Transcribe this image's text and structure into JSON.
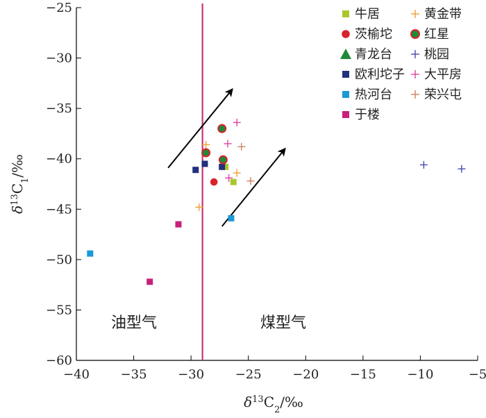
{
  "chart_data": {
    "type": "scatter",
    "xlabel": "δ13C2/‰",
    "ylabel": "δ13C1/‰",
    "xlim": [
      -40,
      -5
    ],
    "ylim": [
      -60,
      -25
    ],
    "x_ticks": [
      -40,
      -35,
      -30,
      -25,
      -20,
      -15,
      -10,
      -5
    ],
    "y_ticks": [
      -25,
      -30,
      -35,
      -40,
      -45,
      -50,
      -55,
      -60
    ],
    "x_tick_labels": [
      "−40",
      "−35",
      "−30",
      "−25",
      "−20",
      "−15",
      "−10",
      "−5"
    ],
    "y_tick_labels": [
      "−25",
      "−30",
      "−35",
      "−40",
      "−45",
      "−50",
      "−55",
      "−60"
    ],
    "grid": false,
    "legend_position": "top-right",
    "divider_x": -29,
    "divider_color": "#c8317a",
    "region_labels": [
      "油型气",
      "煤型气"
    ],
    "series": [
      {
        "name": "牛居",
        "marker": "square",
        "color": "#a8c82a",
        "points": [
          [
            -26.3,
            -42.3
          ],
          [
            -27.0,
            -40.8
          ]
        ]
      },
      {
        "name": "茨榆坨",
        "marker": "circle",
        "color": "#d8232a",
        "points": [
          [
            -28.0,
            -42.3
          ]
        ]
      },
      {
        "name": "青龙台",
        "marker": "triangle",
        "color": "#1f8a3a",
        "points": []
      },
      {
        "name": "欧利坨子",
        "marker": "square",
        "color": "#23307a",
        "points": [
          [
            -29.6,
            -41.1
          ],
          [
            -28.8,
            -40.5
          ],
          [
            -27.3,
            -40.8
          ]
        ]
      },
      {
        "name": "热河台",
        "marker": "square",
        "color": "#1a9ad6",
        "points": [
          [
            -38.8,
            -49.4
          ],
          [
            -26.5,
            -45.9
          ]
        ]
      },
      {
        "name": "于楼",
        "marker": "square",
        "color": "#c8207a",
        "points": [
          [
            -33.6,
            -52.2
          ],
          [
            -31.1,
            -46.5
          ]
        ]
      },
      {
        "name": "黄金带",
        "marker": "plus",
        "color": "#f0a030",
        "points": [
          [
            -29.3,
            -44.8
          ],
          [
            -28.7,
            -38.6
          ],
          [
            -26.0,
            -41.4
          ]
        ]
      },
      {
        "name": "红星",
        "marker": "circle-ring",
        "color": "#1f8a3a",
        "ring": "#d8232a",
        "points": [
          [
            -27.3,
            -37.0
          ],
          [
            -28.7,
            -39.4
          ],
          [
            -27.2,
            -40.1
          ]
        ]
      },
      {
        "name": "桃园",
        "marker": "plus",
        "color": "#4a4ab0",
        "points": [
          [
            -9.7,
            -40.6
          ],
          [
            -6.4,
            -41.0
          ]
        ]
      },
      {
        "name": "大平房",
        "marker": "plus",
        "color": "#e040a0",
        "points": [
          [
            -26.0,
            -36.4
          ],
          [
            -26.8,
            -38.5
          ],
          [
            -26.7,
            -41.9
          ]
        ]
      },
      {
        "name": "荣兴屯",
        "marker": "plus",
        "color": "#d08060",
        "points": [
          [
            -25.6,
            -38.8
          ],
          [
            -24.8,
            -42.2
          ]
        ]
      }
    ],
    "arrows": [
      {
        "from": [
          -32.0,
          -40.9
        ],
        "to": [
          -26.4,
          -33.1
        ]
      },
      {
        "from": [
          -27.3,
          -46.7
        ],
        "to": [
          -21.8,
          -39.0
        ]
      }
    ]
  }
}
